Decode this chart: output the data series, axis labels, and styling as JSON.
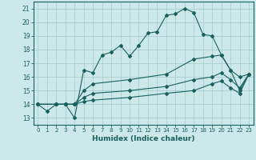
{
  "xlabel": "Humidex (Indice chaleur)",
  "bg_color": "#cce8e8",
  "grid_color": "#aad0d0",
  "line_color": "#1a6060",
  "xlim": [
    -0.5,
    23.5
  ],
  "ylim": [
    12.5,
    21.5
  ],
  "xticks": [
    0,
    1,
    2,
    3,
    4,
    5,
    6,
    7,
    8,
    9,
    10,
    11,
    12,
    13,
    14,
    15,
    16,
    17,
    18,
    19,
    20,
    21,
    22,
    23
  ],
  "yticks": [
    13,
    14,
    15,
    16,
    17,
    18,
    19,
    20,
    21
  ],
  "series": [
    {
      "x": [
        0,
        1,
        2,
        3,
        4,
        5,
        6,
        7,
        8,
        9,
        10,
        11,
        12,
        13,
        14,
        15,
        16,
        17,
        18,
        19,
        20,
        21,
        22,
        23
      ],
      "y": [
        14.0,
        13.5,
        14.0,
        14.0,
        13.0,
        16.5,
        16.3,
        17.6,
        17.8,
        18.3,
        17.5,
        18.3,
        19.2,
        19.3,
        20.5,
        20.6,
        21.0,
        20.7,
        19.1,
        19.0,
        17.6,
        16.5,
        15.0,
        16.2
      ]
    },
    {
      "x": [
        0,
        2,
        3,
        4,
        5,
        6,
        10,
        14,
        17,
        19,
        20,
        21,
        22,
        23
      ],
      "y": [
        14.0,
        14.0,
        14.0,
        14.0,
        15.0,
        15.5,
        15.8,
        16.2,
        17.3,
        17.5,
        17.6,
        16.5,
        16.0,
        16.2
      ]
    },
    {
      "x": [
        0,
        2,
        3,
        4,
        5,
        6,
        10,
        14,
        17,
        19,
        20,
        21,
        22,
        23
      ],
      "y": [
        14.0,
        14.0,
        14.0,
        14.0,
        14.5,
        14.8,
        15.0,
        15.3,
        15.8,
        16.0,
        16.3,
        15.8,
        15.2,
        16.2
      ]
    },
    {
      "x": [
        0,
        2,
        3,
        4,
        5,
        6,
        10,
        14,
        17,
        19,
        20,
        21,
        22,
        23
      ],
      "y": [
        14.0,
        14.0,
        14.0,
        14.0,
        14.2,
        14.3,
        14.5,
        14.8,
        15.0,
        15.5,
        15.7,
        15.2,
        14.8,
        16.2
      ]
    }
  ]
}
